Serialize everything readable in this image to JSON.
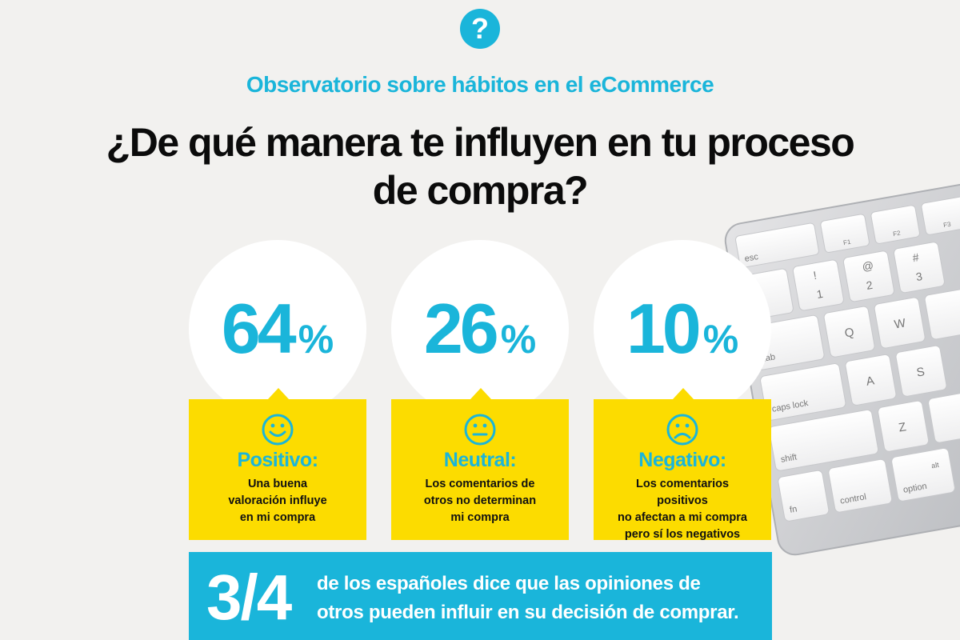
{
  "header": {
    "icon_glyph": "?",
    "subtitle": "Observatorio sobre hábitos en el eCommerce",
    "title_line1": "¿De qué manera te influyen en tu proceso",
    "title_line2": "de compra?"
  },
  "stats": [
    {
      "percent": "64",
      "percent_symbol": "%",
      "face": "smile-face-icon",
      "label": "Positivo:",
      "description": "Una buena\nvaloración influye\nen mi compra"
    },
    {
      "percent": "26",
      "percent_symbol": "%",
      "face": "neutral-face-icon",
      "label": "Neutral:",
      "description": "Los comentarios de\notros no determinan\nmi compra"
    },
    {
      "percent": "10",
      "percent_symbol": "%",
      "face": "sad-face-icon",
      "label": "Negativo:",
      "description": "Los comentarios positivos\nno afectan a mi compra\npero sí los negativos"
    }
  ],
  "banner": {
    "fraction": "3/4",
    "text": "de los españoles dice que las opiniones de\notros pueden influir en su decisión de comprar."
  },
  "keyboard": {
    "keys": [
      "esc",
      "F1",
      "F2",
      "F3",
      "~",
      "!",
      "1",
      "@",
      "2",
      "#",
      "3",
      "tab",
      "Q",
      "W",
      "caps lock",
      "A",
      "S",
      "shift",
      "Z",
      "fn",
      "control",
      "alt",
      "option"
    ]
  },
  "colors": {
    "background": "#f2f1ef",
    "accent_blue": "#1ab5da",
    "card_yellow": "#fcdc00",
    "title_black": "#0b0b0b"
  }
}
